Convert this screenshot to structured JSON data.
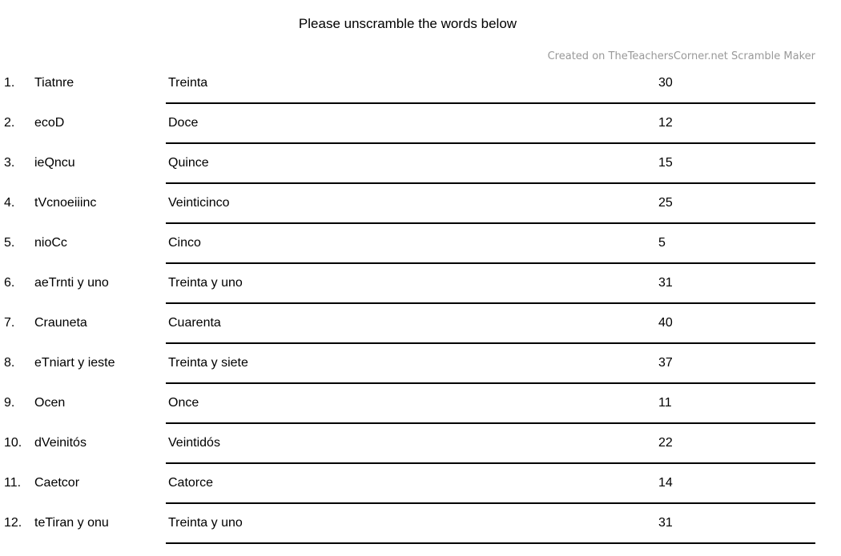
{
  "title": "Please unscramble the words below",
  "subtitle": "Created on TheTeachersCorner.net Scramble Maker",
  "colors": {
    "text": "#000000",
    "subtitle_text": "#999999",
    "answer_line": "#000000",
    "background": "#ffffff"
  },
  "rows": [
    {
      "num": "1.",
      "scrambled": "Tiatnre",
      "answer": "Treinta",
      "value": "30"
    },
    {
      "num": "2.",
      "scrambled": "ecoD",
      "answer": "Doce",
      "value": "12"
    },
    {
      "num": "3.",
      "scrambled": "ieQncu",
      "answer": "Quince",
      "value": "15"
    },
    {
      "num": "4.",
      "scrambled": "tVcnoeiiinc",
      "answer": "Veinticinco",
      "value": "25"
    },
    {
      "num": "5.",
      "scrambled": "nioCc",
      "answer": "Cinco",
      "value": "5"
    },
    {
      "num": "6.",
      "scrambled": "aeTrnti y uno",
      "answer": "Treinta y uno",
      "value": "31"
    },
    {
      "num": "7.",
      "scrambled": "Crauneta",
      "answer": "Cuarenta",
      "value": "40"
    },
    {
      "num": "8.",
      "scrambled": "eTniart y ieste",
      "answer": "Treinta y siete",
      "value": "37"
    },
    {
      "num": "9.",
      "scrambled": "Ocen",
      "answer": "Once",
      "value": "11"
    },
    {
      "num": "10.",
      "scrambled": "dVeinitós",
      "answer": "Veintidós",
      "value": "22"
    },
    {
      "num": "11.",
      "scrambled": "Caetcor",
      "answer": "Catorce",
      "value": "14"
    },
    {
      "num": "12.",
      "scrambled": "teTiran y onu",
      "answer": "Treinta y uno",
      "value": "31"
    }
  ]
}
